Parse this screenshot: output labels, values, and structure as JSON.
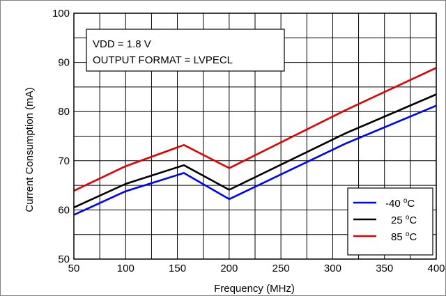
{
  "chart_data": {
    "type": "line",
    "xlabel": "Frequency (MHz)",
    "ylabel": "Current Consumption (mA)",
    "xlim": [
      50,
      400
    ],
    "ylim": [
      50,
      100
    ],
    "x_ticks": [
      50,
      100,
      150,
      200,
      250,
      300,
      350,
      400
    ],
    "y_ticks": [
      50,
      60,
      70,
      80,
      90,
      100
    ],
    "grid": true,
    "legend_position": "bottom-right",
    "annotation": {
      "line1": "VDD = 1.8 V",
      "line2": "OUTPUT FORMAT = LVPECL"
    },
    "series": [
      {
        "name": "-40 °C",
        "color": "#0000ff",
        "x": [
          50,
          100,
          156.25,
          200,
          312.5,
          400
        ],
        "y": [
          59,
          63.8,
          67.5,
          62.2,
          73.5,
          81.2
        ]
      },
      {
        "name": "25 °C",
        "color": "#000000",
        "x": [
          50,
          100,
          156.25,
          200,
          312.5,
          400
        ],
        "y": [
          60.5,
          65.3,
          69.1,
          64.1,
          75.6,
          83.5
        ]
      },
      {
        "name": "85 °C",
        "color": "#e00000",
        "x": [
          50,
          100,
          156.25,
          200,
          312.5,
          400
        ],
        "y": [
          63.9,
          68.9,
          73.2,
          68.5,
          80.3,
          88.9
        ]
      }
    ]
  },
  "legend": {
    "entry0": {
      "value": "-40",
      "unit": "C",
      "deg": "o"
    },
    "entry1": {
      "value": "25",
      "unit": "C",
      "deg": "o"
    },
    "entry2": {
      "value": "85",
      "unit": "C",
      "deg": "o"
    }
  }
}
